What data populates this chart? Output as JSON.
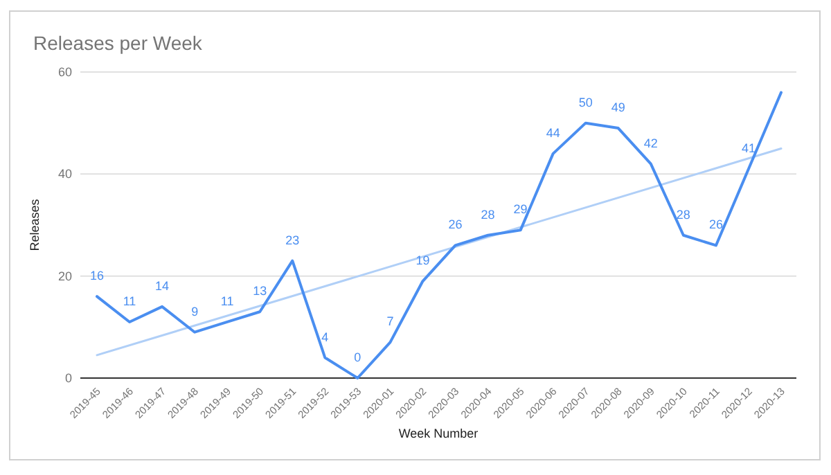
{
  "chart_data": {
    "type": "line",
    "title": "Releases per Week",
    "xlabel": "Week Number",
    "ylabel": "Releases",
    "categories": [
      "2019-45",
      "2019-46",
      "2019-47",
      "2019-48",
      "2019-49",
      "2019-50",
      "2019-51",
      "2019-52",
      "2019-53",
      "2020-01",
      "2020-02",
      "2020-03",
      "2020-04",
      "2020-05",
      "2020-06",
      "2020-07",
      "2020-08",
      "2020-09",
      "2020-10",
      "2020-11",
      "2020-12",
      "2020-13"
    ],
    "series": [
      {
        "color": "#4a8ef0",
        "values": [
          16,
          11,
          14,
          9,
          11,
          13,
          23,
          4,
          0,
          7,
          19,
          26,
          28,
          29,
          44,
          50,
          49,
          42,
          28,
          26,
          41,
          56
        ],
        "value_labels": [
          "16",
          "11",
          "14",
          "9",
          "11",
          "13",
          "23",
          "4",
          "0",
          "7",
          "19",
          "26",
          "28",
          "29",
          "44",
          "50",
          "49",
          "42",
          "28",
          "26",
          "41",
          null
        ]
      },
      {
        "type": "line",
        "color": "#b0cff7",
        "x": [
          "2019-45",
          "2020-13"
        ],
        "values": [
          4.5,
          45
        ]
      }
    ],
    "ylim": [
      0,
      60
    ],
    "yticks": [
      0,
      20,
      40,
      60
    ],
    "grid": "y",
    "marker": "none",
    "line_style": "solid"
  }
}
